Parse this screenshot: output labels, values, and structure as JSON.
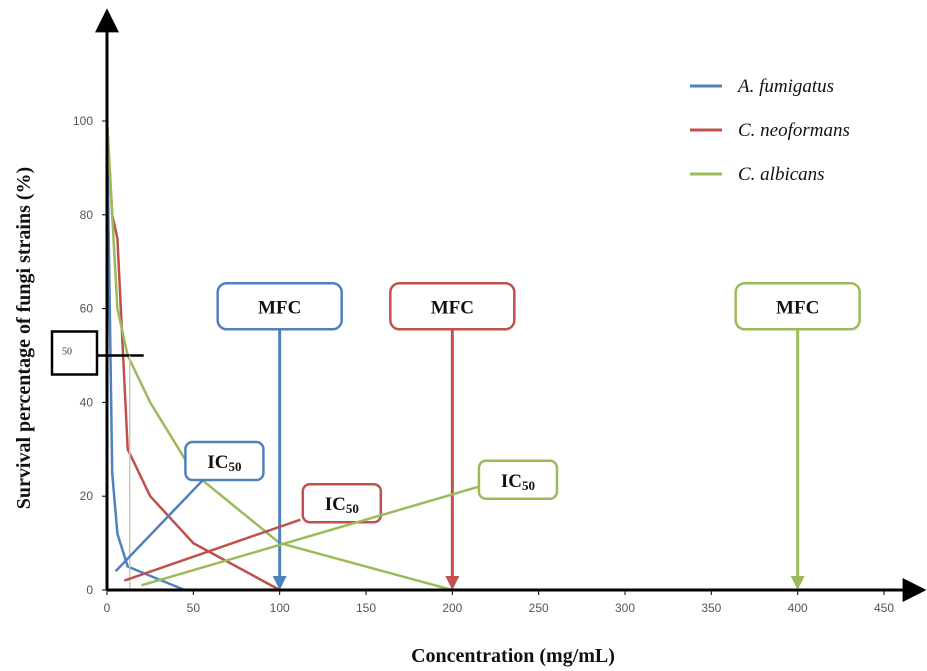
{
  "chart_data": {
    "type": "line",
    "xlabel": "Concentration (mg/mL)",
    "ylabel": "Survival percentage of fungi strains (%)",
    "xlim": [
      0,
      450
    ],
    "ylim": [
      0,
      100
    ],
    "xticks": [
      "0",
      "50",
      "100",
      "150",
      "200",
      "250",
      "300",
      "350",
      "400",
      "450"
    ],
    "yticks": [
      "0",
      "20",
      "40",
      "60",
      "80",
      "100"
    ],
    "grid": false,
    "legend": "top-right",
    "series": [
      {
        "name": "A. fumigatus",
        "color": "#4f81bd",
        "points": [
          [
            0,
            100
          ],
          [
            3,
            25
          ],
          [
            6,
            12
          ],
          [
            12,
            5
          ],
          [
            25,
            3
          ],
          [
            45,
            0
          ]
        ]
      },
      {
        "name": "C. neoformans",
        "color": "#c0504d",
        "points": [
          [
            0,
            100
          ],
          [
            3,
            80
          ],
          [
            6,
            75
          ],
          [
            12,
            30
          ],
          [
            25,
            20
          ],
          [
            50,
            10
          ],
          [
            100,
            0
          ]
        ]
      },
      {
        "name": "C. albicans",
        "color": "#9bbb59",
        "points": [
          [
            0,
            100
          ],
          [
            3,
            80
          ],
          [
            6,
            60
          ],
          [
            12,
            50
          ],
          [
            25,
            40
          ],
          [
            50,
            25
          ],
          [
            100,
            10
          ],
          [
            200,
            0
          ]
        ]
      }
    ],
    "threshold": {
      "label": "50",
      "y": 50,
      "x_end": 12
    },
    "annotations": [
      {
        "label": "MFC",
        "type": "arrow",
        "color": "#4f81bd",
        "x": 100,
        "text_x": 100,
        "text_y": 60.5
      },
      {
        "label": "MFC",
        "type": "arrow",
        "color": "#c0504d",
        "x": 200,
        "text_x": 200,
        "text_y": 60.5
      },
      {
        "label": "MFC",
        "type": "arrow",
        "color": "#9bbb59",
        "x": 400,
        "text_x": 400,
        "text_y": 60.5
      },
      {
        "label": "IC",
        "sub": "50",
        "type": "pointer",
        "color": "#4f81bd",
        "target": [
          5,
          4
        ],
        "anchor": [
          57,
          24
        ],
        "text_x": 68,
        "text_y": 27.5
      },
      {
        "label": "IC",
        "sub": "50",
        "type": "pointer",
        "color": "#c0504d",
        "target": [
          10,
          2
        ],
        "anchor": [
          112,
          15
        ],
        "text_x": 136,
        "text_y": 18.5
      },
      {
        "label": "IC",
        "sub": "50",
        "type": "pointer",
        "color": "#9bbb59",
        "target": [
          20,
          1
        ],
        "anchor": [
          215,
          22
        ],
        "text_x": 238,
        "text_y": 23.5
      }
    ]
  }
}
